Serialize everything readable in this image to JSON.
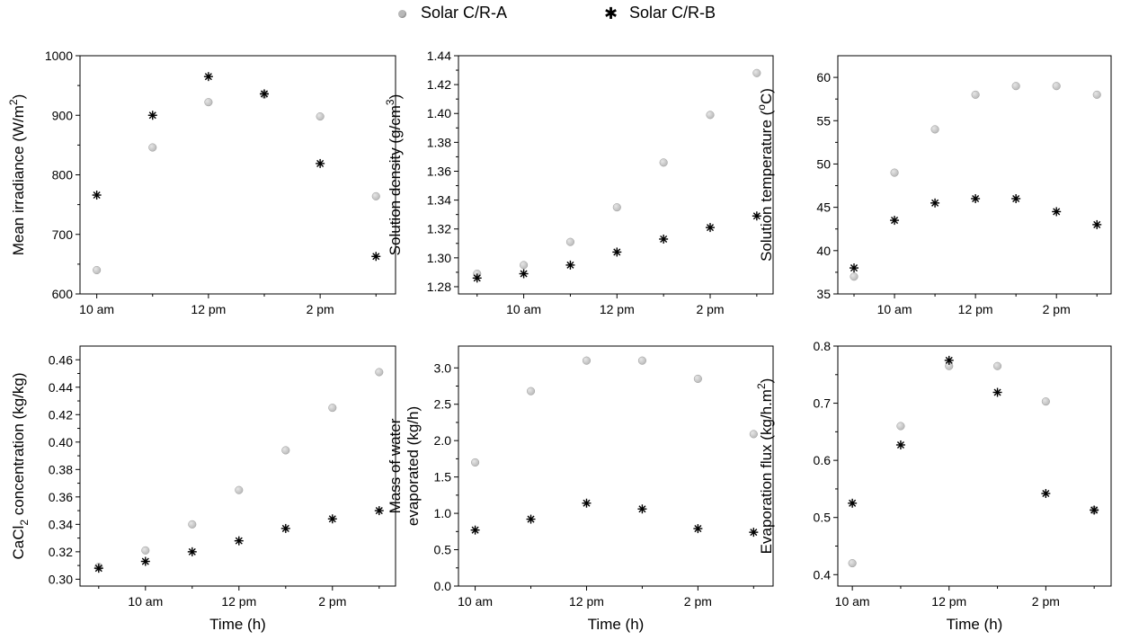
{
  "colors": {
    "series_a": "#b8b8b8",
    "series_b": "#000000",
    "axis": "#000000"
  },
  "legend": {
    "placement": "top-center",
    "items": [
      {
        "label": "Solar C/R-A",
        "marker": "sphere"
      },
      {
        "label": "Solar C/R-B",
        "marker": "asterisk"
      }
    ]
  },
  "chart_data": [
    {
      "id": "irradiance",
      "type": "scatter",
      "ylabel_main": "Mean irradiance (W/m",
      "ylabel_sup": "2",
      "ylabel_tail": ")",
      "xlabel": "",
      "x": [
        10,
        11,
        12,
        13,
        14,
        15
      ],
      "xlim": [
        9.7,
        15.35
      ],
      "xticks": [
        10,
        12,
        14
      ],
      "xtick_labels": [
        "10 am",
        "12 pm",
        "2 pm"
      ],
      "ylim": [
        600,
        1000
      ],
      "yticks": [
        600,
        700,
        800,
        900,
        1000
      ],
      "yticklabels": [
        "600",
        "700",
        "800",
        "900",
        "1000"
      ],
      "series": [
        {
          "name": "Solar C/R-A",
          "marker": "sphere",
          "values": [
            640,
            846,
            922,
            935,
            898,
            764
          ]
        },
        {
          "name": "Solar C/R-B",
          "marker": "asterisk",
          "values": [
            766,
            900,
            965,
            936,
            819,
            663
          ]
        }
      ]
    },
    {
      "id": "density",
      "type": "scatter",
      "ylabel_main": "Solution density (g/cm",
      "ylabel_sup": "3",
      "ylabel_tail": ")",
      "xlabel": "",
      "x": [
        9,
        10,
        11,
        12,
        13,
        14,
        15
      ],
      "xlim": [
        8.6,
        15.35
      ],
      "xticks": [
        10,
        12,
        14
      ],
      "xtick_labels": [
        "10 am",
        "12 pm",
        "2 pm"
      ],
      "ylim": [
        1.275,
        1.44
      ],
      "yticks": [
        1.28,
        1.3,
        1.32,
        1.34,
        1.36,
        1.38,
        1.4,
        1.42,
        1.44
      ],
      "yticklabels": [
        "1.28",
        "1.30",
        "1.32",
        "1.34",
        "1.36",
        "1.38",
        "1.40",
        "1.42",
        "1.44"
      ],
      "series": [
        {
          "name": "Solar C/R-A",
          "marker": "sphere",
          "values": [
            1.289,
            1.295,
            1.311,
            1.335,
            1.366,
            1.399,
            1.428
          ]
        },
        {
          "name": "Solar C/R-B",
          "marker": "asterisk",
          "values": [
            1.286,
            1.289,
            1.295,
            1.304,
            1.313,
            1.321,
            1.329
          ]
        }
      ]
    },
    {
      "id": "temperature",
      "type": "scatter",
      "ylabel_main": "Solution temperature (",
      "ylabel_sup": "o",
      "ylabel_tail": "C)",
      "xlabel": "",
      "x": [
        9,
        10,
        11,
        12,
        13,
        14,
        15
      ],
      "xlim": [
        8.6,
        15.35
      ],
      "xticks": [
        10,
        12,
        14
      ],
      "xtick_labels": [
        "10 am",
        "12 pm",
        "2 pm"
      ],
      "ylim": [
        35,
        62.5
      ],
      "yticks": [
        35,
        40,
        45,
        50,
        55,
        60
      ],
      "yticklabels": [
        "35",
        "40",
        "45",
        "50",
        "55",
        "60"
      ],
      "series": [
        {
          "name": "Solar C/R-A",
          "marker": "sphere",
          "values": [
            37,
            49,
            54,
            58,
            59,
            59,
            58
          ]
        },
        {
          "name": "Solar C/R-B",
          "marker": "asterisk",
          "values": [
            38,
            43.5,
            45.5,
            46,
            46,
            44.5,
            43
          ]
        }
      ]
    },
    {
      "id": "concentration",
      "type": "scatter",
      "ylabel_main": "CaCl",
      "ylabel_sub": "2",
      "ylabel_tail": " concentration (kg/kg)",
      "xlabel": "Time (h)",
      "x": [
        9,
        10,
        11,
        12,
        13,
        14,
        15
      ],
      "xlim": [
        8.6,
        15.35
      ],
      "xticks": [
        10,
        12,
        14
      ],
      "xtick_labels": [
        "10 am",
        "12 pm",
        "2 pm"
      ],
      "ylim": [
        0.295,
        0.47
      ],
      "yticks": [
        0.3,
        0.32,
        0.34,
        0.36,
        0.38,
        0.4,
        0.42,
        0.44,
        0.46
      ],
      "yticklabels": [
        "0.30",
        "0.32",
        "0.34",
        "0.36",
        "0.38",
        "0.40",
        "0.42",
        "0.44",
        "0.46"
      ],
      "series": [
        {
          "name": "Solar C/R-A",
          "marker": "sphere",
          "values": [
            0.309,
            0.321,
            0.34,
            0.365,
            0.394,
            0.425,
            0.451
          ]
        },
        {
          "name": "Solar C/R-B",
          "marker": "asterisk",
          "values": [
            0.308,
            0.313,
            0.32,
            0.328,
            0.337,
            0.344,
            0.35
          ]
        }
      ]
    },
    {
      "id": "mass",
      "type": "scatter",
      "ylabel_main": "Mass of water",
      "ylabel_line2": "evaporated (kg/h)",
      "xlabel": "Time (h)",
      "x": [
        10,
        11,
        12,
        13,
        14,
        15
      ],
      "xlim": [
        9.7,
        15.35
      ],
      "xticks": [
        10,
        12,
        14
      ],
      "xtick_labels": [
        "10 am",
        "12 pm",
        "2 pm"
      ],
      "ylim": [
        0,
        3.3
      ],
      "yticks": [
        0,
        0.5,
        1.0,
        1.5,
        2.0,
        2.5,
        3.0
      ],
      "yticklabels": [
        "0.0",
        "0.5",
        "1.0",
        "1.5",
        "2.0",
        "2.5",
        "3.0"
      ],
      "series": [
        {
          "name": "Solar C/R-A",
          "marker": "sphere",
          "values": [
            1.7,
            2.68,
            3.1,
            3.1,
            2.85,
            2.09
          ]
        },
        {
          "name": "Solar C/R-B",
          "marker": "asterisk",
          "values": [
            0.77,
            0.92,
            1.14,
            1.06,
            0.79,
            0.74
          ]
        }
      ]
    },
    {
      "id": "flux",
      "type": "scatter",
      "ylabel_main": "Evaporation flux (kg/h.m",
      "ylabel_sup": "2",
      "ylabel_tail": ")",
      "xlabel": "Time (h)",
      "x": [
        10,
        11,
        12,
        13,
        14,
        15
      ],
      "xlim": [
        9.7,
        15.35
      ],
      "xticks": [
        10,
        12,
        14
      ],
      "xtick_labels": [
        "10 am",
        "12 pm",
        "2 pm"
      ],
      "ylim": [
        0.38,
        0.8
      ],
      "yticks": [
        0.4,
        0.5,
        0.6,
        0.7,
        0.8
      ],
      "yticklabels": [
        "0.4",
        "0.5",
        "0.6",
        "0.7",
        "0.8"
      ],
      "series": [
        {
          "name": "Solar C/R-A",
          "marker": "sphere",
          "values": [
            0.42,
            0.66,
            0.765,
            0.765,
            0.703,
            0.513
          ]
        },
        {
          "name": "Solar C/R-B",
          "marker": "asterisk",
          "values": [
            0.525,
            0.627,
            0.775,
            0.719,
            0.542,
            0.513
          ]
        }
      ]
    }
  ]
}
